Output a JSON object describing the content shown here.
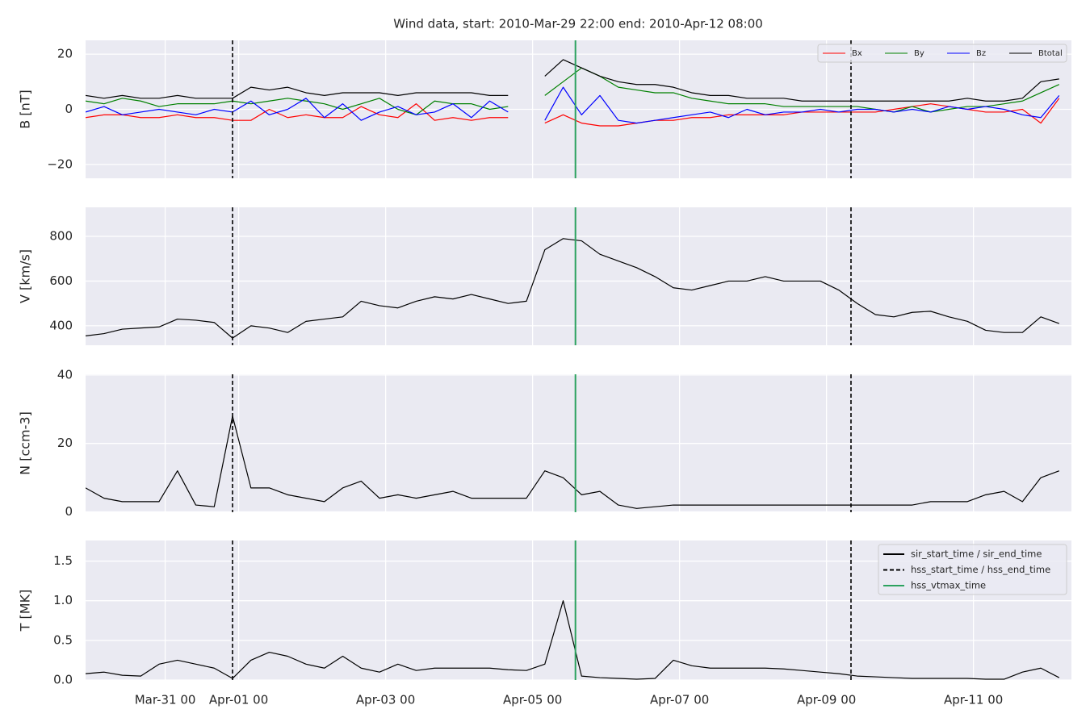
{
  "chart_data": {
    "type": "line",
    "title": "Wind data, start: 2010-Mar-29 22:00  end: 2010-Apr-12 08:00",
    "xlim": [
      "2010-03-29T22:00",
      "2010-04-12T08:00"
    ],
    "xticks": [
      {
        "value": "2010-03-31T00:00",
        "label": "Mar-31 00"
      },
      {
        "value": "2010-04-01T00:00",
        "label": "Apr-01 00"
      },
      {
        "value": "2010-04-03T00:00",
        "label": "Apr-03 00"
      },
      {
        "value": "2010-04-05T00:00",
        "label": "Apr-05 00"
      },
      {
        "value": "2010-04-07T00:00",
        "label": "Apr-07 00"
      },
      {
        "value": "2010-04-09T00:00",
        "label": "Apr-09 00"
      },
      {
        "value": "2010-04-11T00:00",
        "label": "Apr-11 00"
      }
    ],
    "grid": true,
    "x": [
      "2010-03-29T22:00",
      "2010-03-30T04:00",
      "2010-03-30T10:00",
      "2010-03-30T16:00",
      "2010-03-30T22:00",
      "2010-03-31T04:00",
      "2010-03-31T10:00",
      "2010-03-31T16:00",
      "2010-03-31T22:00",
      "2010-04-01T04:00",
      "2010-04-01T10:00",
      "2010-04-01T16:00",
      "2010-04-01T22:00",
      "2010-04-02T04:00",
      "2010-04-02T10:00",
      "2010-04-02T16:00",
      "2010-04-02T22:00",
      "2010-04-03T04:00",
      "2010-04-03T10:00",
      "2010-04-03T16:00",
      "2010-04-03T22:00",
      "2010-04-04T04:00",
      "2010-04-04T10:00",
      "2010-04-04T16:00",
      "2010-04-04T22:00",
      "2010-04-05T04:00",
      "2010-04-05T10:00",
      "2010-04-05T16:00",
      "2010-04-05T22:00",
      "2010-04-06T04:00",
      "2010-04-06T10:00",
      "2010-04-06T16:00",
      "2010-04-06T22:00",
      "2010-04-07T04:00",
      "2010-04-07T10:00",
      "2010-04-07T16:00",
      "2010-04-07T22:00",
      "2010-04-08T04:00",
      "2010-04-08T10:00",
      "2010-04-08T16:00",
      "2010-04-08T22:00",
      "2010-04-09T04:00",
      "2010-04-09T10:00",
      "2010-04-09T16:00",
      "2010-04-09T22:00",
      "2010-04-10T04:00",
      "2010-04-10T10:00",
      "2010-04-10T16:00",
      "2010-04-10T22:00",
      "2010-04-11T04:00",
      "2010-04-11T10:00",
      "2010-04-11T16:00",
      "2010-04-11T22:00",
      "2010-04-12T04:00"
    ],
    "panels": [
      {
        "ylabel": "B [nT]",
        "ylim": [
          -25,
          25
        ],
        "yticks": [
          {
            "value": -20,
            "label": "−20"
          },
          0,
          20
        ],
        "legend": "upper right",
        "series": [
          {
            "name": "Bx",
            "color": "#ff0000",
            "values": [
              -3,
              -2,
              -2,
              -3,
              -3,
              -2,
              -3,
              -3,
              -4,
              -4,
              0,
              -3,
              -2,
              -3,
              -3,
              1,
              -2,
              -3,
              2,
              -4,
              -3,
              -4,
              -3,
              -3,
              null,
              -5,
              -2,
              -5,
              -6,
              -6,
              -5,
              -4,
              -4,
              -3,
              -3,
              -2,
              -2,
              -2,
              -2,
              -1,
              -1,
              -1,
              -1,
              -1,
              0,
              1,
              2,
              1,
              0,
              -1,
              -1,
              0,
              -5,
              4
            ]
          },
          {
            "name": "By",
            "color": "#008000",
            "values": [
              3,
              2,
              4,
              3,
              1,
              2,
              2,
              2,
              3,
              2,
              3,
              4,
              3,
              2,
              0,
              2,
              4,
              0,
              -2,
              3,
              2,
              2,
              0,
              1,
              null,
              5,
              10,
              15,
              12,
              8,
              7,
              6,
              6,
              4,
              3,
              2,
              2,
              2,
              1,
              1,
              1,
              1,
              1,
              0,
              -1,
              1,
              -1,
              0,
              1,
              1,
              2,
              3,
              6,
              9
            ]
          },
          {
            "name": "Bz",
            "color": "#0000ff",
            "values": [
              -1,
              1,
              -2,
              -1,
              0,
              -1,
              -2,
              0,
              -1,
              3,
              -2,
              0,
              4,
              -3,
              2,
              -4,
              -1,
              1,
              -2,
              -1,
              2,
              -3,
              3,
              -1,
              null,
              -4,
              8,
              -2,
              5,
              -4,
              -5,
              -4,
              -3,
              -2,
              -1,
              -3,
              0,
              -2,
              -1,
              -1,
              0,
              -1,
              0,
              0,
              -1,
              0,
              -1,
              1,
              0,
              1,
              0,
              -2,
              -3,
              5
            ]
          },
          {
            "name": "Btotal",
            "color": "#000000",
            "values": [
              5,
              4,
              5,
              4,
              4,
              5,
              4,
              4,
              4,
              8,
              7,
              8,
              6,
              5,
              6,
              6,
              6,
              5,
              6,
              6,
              6,
              6,
              5,
              5,
              null,
              12,
              18,
              15,
              12,
              10,
              9,
              9,
              8,
              6,
              5,
              5,
              4,
              4,
              4,
              3,
              3,
              3,
              3,
              3,
              3,
              3,
              3,
              3,
              4,
              3,
              3,
              4,
              10,
              11
            ]
          }
        ]
      },
      {
        "ylabel": "V [km/s]",
        "ylim": [
          313,
          930
        ],
        "yticks": [
          400,
          600,
          800
        ],
        "color": "#000000",
        "values": [
          355,
          365,
          385,
          390,
          395,
          430,
          425,
          415,
          345,
          400,
          390,
          370,
          420,
          430,
          440,
          510,
          490,
          480,
          510,
          530,
          520,
          540,
          520,
          500,
          510,
          740,
          790,
          780,
          720,
          690,
          660,
          620,
          570,
          560,
          580,
          600,
          600,
          620,
          600,
          600,
          600,
          560,
          500,
          450,
          440,
          460,
          465,
          440,
          420,
          380,
          370,
          370,
          440,
          410
        ]
      },
      {
        "ylabel": "N [ccm-3]",
        "ylim": [
          -0.1,
          40.2
        ],
        "yticks": [
          0,
          20,
          40
        ],
        "color": "#000000",
        "values": [
          7,
          4,
          3,
          3,
          3,
          12,
          2,
          1.5,
          28,
          7,
          7,
          5,
          4,
          3,
          7,
          9,
          4,
          5,
          4,
          5,
          6,
          4,
          4,
          4,
          4,
          12,
          10,
          5,
          6,
          2,
          1,
          1.5,
          2,
          2,
          2,
          2,
          2,
          2,
          2,
          2,
          2,
          2,
          2,
          2,
          2,
          2,
          3,
          3,
          3,
          5,
          6,
          3,
          10,
          12
        ]
      },
      {
        "ylabel": "T [MK]",
        "ylim": [
          0,
          1.76
        ],
        "yticks": [
          {
            "value": 0,
            "label": "0.0"
          },
          0.5,
          {
            "value": 1,
            "label": "1.0"
          },
          1.5
        ],
        "color": "#000000",
        "values": [
          0.08,
          0.1,
          0.06,
          0.05,
          0.2,
          0.25,
          0.2,
          0.15,
          0.02,
          0.25,
          0.35,
          0.3,
          0.2,
          0.15,
          0.3,
          0.15,
          0.1,
          0.2,
          0.12,
          0.15,
          0.15,
          0.15,
          0.15,
          0.13,
          0.12,
          0.2,
          1.0,
          0.05,
          0.03,
          0.02,
          0.01,
          0.02,
          0.25,
          0.18,
          0.15,
          0.15,
          0.15,
          0.15,
          0.14,
          0.12,
          0.1,
          0.08,
          0.05,
          0.04,
          0.03,
          0.02,
          0.02,
          0.02,
          0.02,
          0.01,
          0.01,
          0.1,
          0.15,
          0.03
        ]
      }
    ],
    "events": [
      {
        "name": "sir_start_time / sir_end_time",
        "color": "#000000",
        "style": "solid",
        "x": []
      },
      {
        "name": "hss_start_time / hss_end_time",
        "color": "#000000",
        "style": "dashed",
        "x": [
          "2010-03-31T22:00",
          "2010-04-09T08:00"
        ]
      },
      {
        "name": "hss_vtmax_time",
        "color": "#2ca25f",
        "style": "solid",
        "x": [
          "2010-04-05T14:00"
        ]
      }
    ],
    "events_legend": "upper right"
  }
}
